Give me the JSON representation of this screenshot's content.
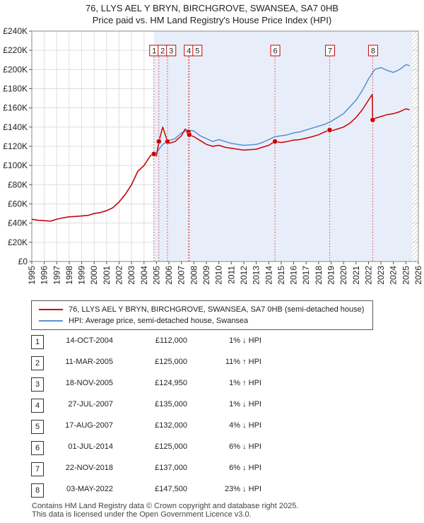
{
  "title_line1": "76, LLYS AEL Y BRYN, BIRCHGROVE, SWANSEA, SA7 0HB",
  "title_line2": "Price paid vs. HM Land Registry's House Price Index (HPI)",
  "colors": {
    "property": "#cc0000",
    "hpi": "#5b8fd0",
    "shade": "#e8eef9",
    "marker_line": "#e06666"
  },
  "chart_data": {
    "type": "line",
    "xlim": [
      1995,
      2026
    ],
    "ylim": [
      0,
      240000
    ],
    "y_ticks": [
      {
        "value": 0,
        "label": "£0"
      },
      {
        "value": 20000,
        "label": "£20K"
      },
      {
        "value": 40000,
        "label": "£40K"
      },
      {
        "value": 60000,
        "label": "£60K"
      },
      {
        "value": 80000,
        "label": "£80K"
      },
      {
        "value": 100000,
        "label": "£100K"
      },
      {
        "value": 120000,
        "label": "£120K"
      },
      {
        "value": 140000,
        "label": "£140K"
      },
      {
        "value": 160000,
        "label": "£160K"
      },
      {
        "value": 180000,
        "label": "£180K"
      },
      {
        "value": 200000,
        "label": "£200K"
      },
      {
        "value": 220000,
        "label": "£220K"
      },
      {
        "value": 240000,
        "label": "£240K"
      }
    ],
    "x_ticks": [
      "1995",
      "1996",
      "1997",
      "1998",
      "1999",
      "2000",
      "2001",
      "2002",
      "2003",
      "2004",
      "2005",
      "2006",
      "2007",
      "2008",
      "2009",
      "2010",
      "2011",
      "2012",
      "2013",
      "2014",
      "2015",
      "2016",
      "2017",
      "2018",
      "2019",
      "2020",
      "2021",
      "2022",
      "2023",
      "2024",
      "2025",
      "2026"
    ],
    "shaded_range": [
      2004.79,
      2025.5
    ],
    "hatched_range": [
      2025.5,
      2026
    ],
    "series": [
      {
        "name": "76, LLYS AEL Y BRYN, BIRCHGROVE, SWANSEA, SA7 0HB (semi-detached house)",
        "x": [
          1995.0,
          1995.5,
          1996.0,
          1996.5,
          1997.0,
          1997.5,
          1998.0,
          1998.5,
          1999.0,
          1999.5,
          2000.0,
          2000.5,
          2001.0,
          2001.5,
          2002.0,
          2002.5,
          2003.0,
          2003.5,
          2004.0,
          2004.5,
          2004.79,
          2005.0,
          2005.19,
          2005.5,
          2005.88,
          2006.0,
          2006.5,
          2007.0,
          2007.3,
          2007.57,
          2007.63,
          2008.0,
          2008.5,
          2009.0,
          2009.5,
          2010.0,
          2010.5,
          2011.0,
          2011.5,
          2012.0,
          2012.5,
          2013.0,
          2013.5,
          2014.0,
          2014.5,
          2015.0,
          2015.5,
          2016.0,
          2016.5,
          2017.0,
          2017.5,
          2018.0,
          2018.5,
          2018.89,
          2019.0,
          2019.5,
          2020.0,
          2020.5,
          2021.0,
          2021.5,
          2022.0,
          2022.3,
          2022.34,
          2022.5,
          2023.0,
          2023.5,
          2024.0,
          2024.5,
          2025.0,
          2025.3
        ],
        "values": [
          44000,
          43000,
          42500,
          42000,
          44000,
          45500,
          46500,
          47000,
          47500,
          48000,
          50000,
          51000,
          53000,
          56000,
          62000,
          70000,
          80000,
          94000,
          100000,
          110000,
          112000,
          110000,
          125000,
          140000,
          124950,
          123000,
          125000,
          131000,
          138000,
          135000,
          132000,
          130000,
          126000,
          122000,
          120000,
          121000,
          119000,
          118000,
          117000,
          116000,
          116500,
          117000,
          119000,
          121000,
          125000,
          124000,
          125000,
          126500,
          127000,
          128500,
          130000,
          132000,
          135000,
          137000,
          136000,
          138000,
          140000,
          144000,
          150000,
          158000,
          168000,
          174000,
          147500,
          149000,
          151000,
          153000,
          154000,
          156000,
          159000,
          158000
        ]
      },
      {
        "name": "HPI: Average price, semi-detached house, Swansea",
        "x": [
          1995.0,
          1995.5,
          1996.0,
          1996.5,
          1997.0,
          1997.5,
          1998.0,
          1998.5,
          1999.0,
          1999.5,
          2000.0,
          2000.5,
          2001.0,
          2001.5,
          2002.0,
          2002.5,
          2003.0,
          2003.5,
          2004.0,
          2004.5,
          2005.0,
          2005.5,
          2006.0,
          2006.5,
          2007.0,
          2007.5,
          2008.0,
          2008.5,
          2009.0,
          2009.5,
          2010.0,
          2010.5,
          2011.0,
          2011.5,
          2012.0,
          2012.5,
          2013.0,
          2013.5,
          2014.0,
          2014.5,
          2015.0,
          2015.5,
          2016.0,
          2016.5,
          2017.0,
          2017.5,
          2018.0,
          2018.5,
          2019.0,
          2019.5,
          2020.0,
          2020.5,
          2021.0,
          2021.5,
          2022.0,
          2022.5,
          2023.0,
          2023.5,
          2024.0,
          2024.5,
          2025.0,
          2025.3
        ],
        "values": [
          44000,
          43000,
          42500,
          42000,
          44000,
          45500,
          46500,
          47000,
          47500,
          48000,
          50000,
          51000,
          53000,
          56000,
          62000,
          70000,
          80000,
          94000,
          100000,
          110000,
          114000,
          122000,
          126000,
          128000,
          134000,
          137000,
          136000,
          131000,
          128000,
          125000,
          127000,
          125000,
          123000,
          122000,
          121000,
          121500,
          122000,
          124000,
          127000,
          130000,
          131000,
          132000,
          134000,
          135000,
          137000,
          139000,
          141000,
          143000,
          146000,
          150000,
          154000,
          161000,
          168000,
          178000,
          190000,
          200000,
          202000,
          199000,
          197000,
          200000,
          205000,
          204000
        ]
      }
    ],
    "sales": [
      {
        "num": "1",
        "x": 2004.79,
        "y": 112000
      },
      {
        "num": "2",
        "x": 2005.19,
        "y": 125000
      },
      {
        "num": "3",
        "x": 2005.88,
        "y": 124950
      },
      {
        "num": "4",
        "x": 2007.57,
        "y": 135000
      },
      {
        "num": "5",
        "x": 2007.63,
        "y": 132000
      },
      {
        "num": "6",
        "x": 2014.5,
        "y": 125000
      },
      {
        "num": "7",
        "x": 2018.89,
        "y": 137000
      },
      {
        "num": "8",
        "x": 2022.34,
        "y": 147500
      }
    ]
  },
  "legend": {
    "property_label": "76, LLYS AEL Y BRYN, BIRCHGROVE, SWANSEA, SA7 0HB (semi-detached house)",
    "hpi_label": "HPI: Average price, semi-detached house, Swansea"
  },
  "transactions": [
    {
      "num": "1",
      "date": "14-OCT-2004",
      "price": "£112,000",
      "hpi": "1% ↓ HPI"
    },
    {
      "num": "2",
      "date": "11-MAR-2005",
      "price": "£125,000",
      "hpi": "11% ↑ HPI"
    },
    {
      "num": "3",
      "date": "18-NOV-2005",
      "price": "£124,950",
      "hpi": "1% ↑ HPI"
    },
    {
      "num": "4",
      "date": "27-JUL-2007",
      "price": "£135,000",
      "hpi": "1% ↓ HPI"
    },
    {
      "num": "5",
      "date": "17-AUG-2007",
      "price": "£132,000",
      "hpi": "4% ↓ HPI"
    },
    {
      "num": "6",
      "date": "01-JUL-2014",
      "price": "£125,000",
      "hpi": "6% ↓ HPI"
    },
    {
      "num": "7",
      "date": "22-NOV-2018",
      "price": "£137,000",
      "hpi": "6% ↓ HPI"
    },
    {
      "num": "8",
      "date": "03-MAY-2022",
      "price": "£147,500",
      "hpi": "23% ↓ HPI"
    }
  ],
  "footer": {
    "line1": "Contains HM Land Registry data © Crown copyright and database right 2025.",
    "line2": "This data is licensed under the Open Government Licence v3.0."
  }
}
